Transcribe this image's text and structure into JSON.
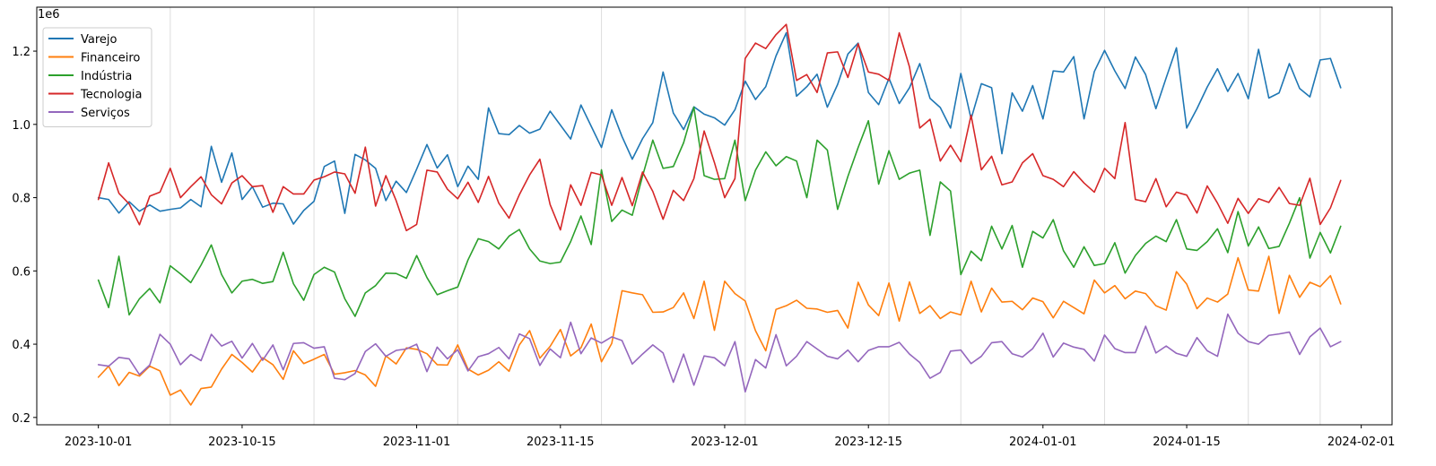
{
  "chart_data": {
    "type": "line",
    "offset_label": "1e6",
    "x_start": "2023-10-01",
    "x_end": "2024-01-30",
    "xlim": [
      "2023-09-25",
      "2024-02-04"
    ],
    "ylim": [
      0.18,
      1.32
    ],
    "x_ticks": [
      "2023-10-01",
      "2023-10-15",
      "2023-11-01",
      "2023-11-15",
      "2023-12-01",
      "2023-12-15",
      "2024-01-01",
      "2024-01-15",
      "2024-02-01"
    ],
    "y_ticks": [
      {
        "value": 0.2,
        "label": "0.2"
      },
      {
        "value": 0.4,
        "label": "0.4"
      },
      {
        "value": 0.6,
        "label": "0.6"
      },
      {
        "value": 0.8,
        "label": "0.8"
      },
      {
        "value": 1.0,
        "label": "1.0"
      },
      {
        "value": 1.2,
        "label": "1.2"
      }
    ],
    "vlines": [
      "2023-10-08",
      "2023-10-22",
      "2023-11-05",
      "2023-11-19",
      "2023-12-03",
      "2023-12-17",
      "2023-12-24",
      "2024-01-07",
      "2024-01-21",
      "2024-01-28"
    ],
    "legend_position": "top-left",
    "grid": false,
    "series": [
      {
        "name": "Varejo",
        "color": "#1f77b4",
        "values": [
          0.8,
          0.795,
          0.758,
          0.789,
          0.763,
          0.78,
          0.763,
          0.768,
          0.772,
          0.795,
          0.775,
          0.94,
          0.842,
          0.922,
          0.795,
          0.83,
          0.774,
          0.785,
          0.783,
          0.728,
          0.765,
          0.79,
          0.885,
          0.9,
          0.757,
          0.918,
          0.903,
          0.88,
          0.792,
          0.845,
          0.814,
          0.878,
          0.945,
          0.881,
          0.917,
          0.83,
          0.886,
          0.85,
          1.045,
          0.975,
          0.972,
          0.997,
          0.976,
          0.987,
          1.036,
          0.998,
          0.96,
          1.053,
          0.995,
          0.937,
          1.04,
          0.967,
          0.905,
          0.961,
          1.005,
          1.143,
          1.031,
          0.986,
          1.048,
          1.028,
          1.018,
          0.998,
          1.04,
          1.118,
          1.068,
          1.103,
          1.187,
          1.25,
          1.077,
          1.103,
          1.137,
          1.047,
          1.109,
          1.192,
          1.222,
          1.087,
          1.054,
          1.126,
          1.057,
          1.1,
          1.166,
          1.071,
          1.046,
          0.99,
          1.139,
          1.015,
          1.111,
          1.1,
          0.92,
          1.086,
          1.036,
          1.106,
          1.015,
          1.146,
          1.143,
          1.185,
          1.015,
          1.144,
          1.202,
          1.146,
          1.098,
          1.184,
          1.136,
          1.043,
          1.127,
          1.209,
          0.99,
          1.043,
          1.102,
          1.152,
          1.09,
          1.139,
          1.07,
          1.205,
          1.072,
          1.086,
          1.166,
          1.098,
          1.075,
          1.176,
          1.18,
          1.1
        ]
      },
      {
        "name": "Financeiro",
        "color": "#ff7f0e",
        "values": [
          0.31,
          0.34,
          0.287,
          0.323,
          0.313,
          0.34,
          0.327,
          0.261,
          0.275,
          0.234,
          0.279,
          0.283,
          0.332,
          0.372,
          0.35,
          0.324,
          0.363,
          0.344,
          0.304,
          0.382,
          0.347,
          0.359,
          0.372,
          0.318,
          0.322,
          0.328,
          0.316,
          0.285,
          0.368,
          0.346,
          0.39,
          0.386,
          0.374,
          0.344,
          0.343,
          0.398,
          0.332,
          0.316,
          0.329,
          0.352,
          0.326,
          0.398,
          0.437,
          0.362,
          0.394,
          0.44,
          0.368,
          0.39,
          0.455,
          0.352,
          0.402,
          0.546,
          0.54,
          0.535,
          0.487,
          0.488,
          0.5,
          0.54,
          0.47,
          0.572,
          0.438,
          0.572,
          0.538,
          0.518,
          0.437,
          0.382,
          0.495,
          0.505,
          0.52,
          0.498,
          0.496,
          0.487,
          0.492,
          0.444,
          0.569,
          0.507,
          0.478,
          0.567,
          0.463,
          0.57,
          0.484,
          0.505,
          0.47,
          0.488,
          0.48,
          0.572,
          0.488,
          0.553,
          0.515,
          0.517,
          0.494,
          0.526,
          0.516,
          0.472,
          0.517,
          0.5,
          0.483,
          0.575,
          0.54,
          0.56,
          0.524,
          0.545,
          0.538,
          0.505,
          0.493,
          0.598,
          0.564,
          0.497,
          0.526,
          0.515,
          0.537,
          0.636,
          0.548,
          0.545,
          0.64,
          0.484,
          0.588,
          0.528,
          0.569,
          0.557,
          0.587,
          0.51
        ]
      },
      {
        "name": "Indústria",
        "color": "#2ca02c",
        "values": [
          0.575,
          0.5,
          0.64,
          0.48,
          0.524,
          0.552,
          0.513,
          0.614,
          0.592,
          0.568,
          0.616,
          0.671,
          0.59,
          0.54,
          0.572,
          0.577,
          0.566,
          0.571,
          0.651,
          0.565,
          0.52,
          0.59,
          0.61,
          0.597,
          0.524,
          0.476,
          0.54,
          0.56,
          0.594,
          0.593,
          0.58,
          0.642,
          0.582,
          0.535,
          0.546,
          0.556,
          0.63,
          0.688,
          0.68,
          0.66,
          0.695,
          0.713,
          0.66,
          0.627,
          0.62,
          0.624,
          0.68,
          0.75,
          0.672,
          0.876,
          0.735,
          0.766,
          0.752,
          0.859,
          0.957,
          0.88,
          0.885,
          0.95,
          1.047,
          0.86,
          0.85,
          0.852,
          0.957,
          0.792,
          0.875,
          0.925,
          0.887,
          0.912,
          0.9,
          0.8,
          0.957,
          0.93,
          0.768,
          0.858,
          0.937,
          1.01,
          0.837,
          0.928,
          0.85,
          0.867,
          0.875,
          0.697,
          0.843,
          0.818,
          0.59,
          0.654,
          0.628,
          0.722,
          0.66,
          0.724,
          0.61,
          0.708,
          0.69,
          0.74,
          0.655,
          0.61,
          0.666,
          0.615,
          0.62,
          0.677,
          0.594,
          0.642,
          0.675,
          0.695,
          0.68,
          0.74,
          0.66,
          0.656,
          0.68,
          0.715,
          0.65,
          0.762,
          0.668,
          0.72,
          0.661,
          0.667,
          0.73,
          0.8,
          0.635,
          0.705,
          0.649,
          0.722
        ]
      },
      {
        "name": "Tecnologia",
        "color": "#d62728",
        "values": [
          0.795,
          0.895,
          0.812,
          0.783,
          0.726,
          0.804,
          0.815,
          0.88,
          0.8,
          0.83,
          0.857,
          0.808,
          0.783,
          0.84,
          0.86,
          0.83,
          0.833,
          0.76,
          0.83,
          0.81,
          0.81,
          0.848,
          0.857,
          0.87,
          0.865,
          0.812,
          0.938,
          0.777,
          0.86,
          0.792,
          0.71,
          0.727,
          0.875,
          0.87,
          0.823,
          0.797,
          0.842,
          0.787,
          0.858,
          0.785,
          0.744,
          0.808,
          0.862,
          0.905,
          0.781,
          0.712,
          0.835,
          0.779,
          0.869,
          0.862,
          0.779,
          0.855,
          0.778,
          0.87,
          0.817,
          0.741,
          0.82,
          0.792,
          0.852,
          0.982,
          0.896,
          0.8,
          0.852,
          1.18,
          1.222,
          1.207,
          1.245,
          1.273,
          1.12,
          1.136,
          1.087,
          1.195,
          1.198,
          1.128,
          1.22,
          1.143,
          1.137,
          1.12,
          1.25,
          1.157,
          0.99,
          1.014,
          0.9,
          0.943,
          0.898,
          1.025,
          0.876,
          0.913,
          0.835,
          0.843,
          0.895,
          0.92,
          0.86,
          0.85,
          0.83,
          0.871,
          0.84,
          0.815,
          0.88,
          0.852,
          1.005,
          0.795,
          0.789,
          0.852,
          0.775,
          0.815,
          0.807,
          0.758,
          0.832,
          0.785,
          0.73,
          0.798,
          0.757,
          0.797,
          0.787,
          0.828,
          0.784,
          0.779,
          0.853,
          0.727,
          0.772,
          0.847
        ]
      },
      {
        "name": "Serviços",
        "color": "#9467bd",
        "values": [
          0.344,
          0.34,
          0.364,
          0.36,
          0.317,
          0.343,
          0.427,
          0.4,
          0.344,
          0.372,
          0.355,
          0.427,
          0.395,
          0.408,
          0.362,
          0.402,
          0.356,
          0.398,
          0.33,
          0.402,
          0.404,
          0.389,
          0.393,
          0.307,
          0.303,
          0.32,
          0.38,
          0.401,
          0.367,
          0.383,
          0.387,
          0.4,
          0.325,
          0.392,
          0.36,
          0.385,
          0.327,
          0.366,
          0.374,
          0.391,
          0.36,
          0.428,
          0.415,
          0.342,
          0.387,
          0.363,
          0.46,
          0.374,
          0.417,
          0.403,
          0.42,
          0.41,
          0.346,
          0.373,
          0.398,
          0.376,
          0.296,
          0.373,
          0.288,
          0.368,
          0.363,
          0.341,
          0.407,
          0.27,
          0.358,
          0.335,
          0.426,
          0.341,
          0.367,
          0.407,
          0.387,
          0.367,
          0.36,
          0.384,
          0.352,
          0.383,
          0.393,
          0.393,
          0.405,
          0.373,
          0.35,
          0.307,
          0.323,
          0.381,
          0.384,
          0.347,
          0.367,
          0.404,
          0.407,
          0.374,
          0.365,
          0.388,
          0.43,
          0.365,
          0.403,
          0.392,
          0.386,
          0.354,
          0.425,
          0.388,
          0.377,
          0.377,
          0.449,
          0.376,
          0.395,
          0.375,
          0.367,
          0.418,
          0.382,
          0.367,
          0.482,
          0.43,
          0.407,
          0.4,
          0.424,
          0.428,
          0.433,
          0.372,
          0.42,
          0.444,
          0.393,
          0.407
        ]
      }
    ]
  }
}
